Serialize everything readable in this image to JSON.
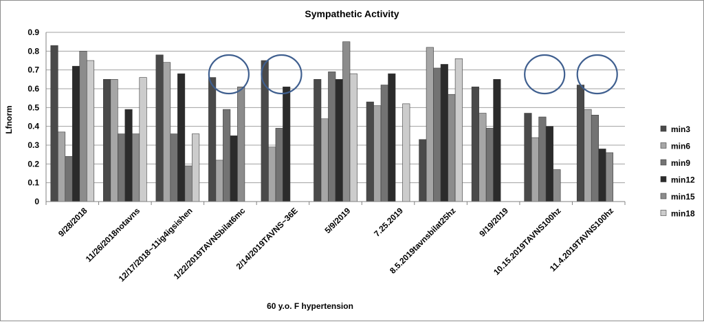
{
  "chart_data": {
    "type": "bar",
    "title": "Sympathetic Activity",
    "xlabel": "60 y.o. F hypertension",
    "ylabel": "Lfnorm",
    "ylim": [
      0,
      0.9
    ],
    "yticks": [
      "0",
      "0.1",
      "0.2",
      "0.3",
      "0.4",
      "0.5",
      "0.6",
      "0.7",
      "0.8",
      "0.9"
    ],
    "grid": true,
    "legend_position": "right",
    "categories": [
      "9/28/2018",
      "11/26/2018notavns",
      "12/17/2018~11ig4igsishen",
      "1/22/2019TAVNSbilat6mc",
      "2/14/2019TAVNS~36E",
      "5/9/2019",
      "7.25.2019",
      "8.5.2019tavnsbilat25hz",
      "9/19/2019",
      "10.15.2019TAVNS100hz",
      "11.4.2019TAVNS100hz"
    ],
    "series": [
      {
        "name": "min3",
        "color": "#4a4a4a",
        "values": [
          0.83,
          0.65,
          0.78,
          0.66,
          0.75,
          0.65,
          0.53,
          0.33,
          0.61,
          0.47,
          0.62
        ]
      },
      {
        "name": "min6",
        "color": "#a6a6a6",
        "values": [
          0.37,
          0.65,
          0.74,
          0.22,
          0.29,
          0.44,
          0.51,
          0.82,
          0.47,
          0.34,
          0.49
        ]
      },
      {
        "name": "min9",
        "color": "#737373",
        "values": [
          0.24,
          0.36,
          0.36,
          0.49,
          0.39,
          0.69,
          0.62,
          0.71,
          0.39,
          0.45,
          0.46
        ]
      },
      {
        "name": "min12",
        "color": "#2b2b2b",
        "values": [
          0.72,
          0.49,
          0.68,
          0.35,
          0.61,
          0.65,
          0.68,
          0.73,
          0.65,
          0.4,
          0.28
        ]
      },
      {
        "name": "min15",
        "color": "#8c8c8c",
        "values": [
          0.8,
          0.36,
          0.19,
          0.61,
          null,
          0.85,
          null,
          0.57,
          null,
          0.17,
          0.26
        ]
      },
      {
        "name": "min18",
        "color": "#cccccc",
        "values": [
          0.75,
          0.66,
          0.36,
          null,
          null,
          0.68,
          0.52,
          0.76,
          null,
          null,
          null
        ]
      }
    ],
    "annotations": [
      {
        "shape": "circle",
        "color": "#3f5f8f",
        "category": "1/22/2019TAVNSbilat6mc"
      },
      {
        "shape": "circle",
        "color": "#3f5f8f",
        "category": "2/14/2019TAVNS~36E"
      },
      {
        "shape": "circle",
        "color": "#3f5f8f",
        "category": "10.15.2019TAVNS100hz"
      },
      {
        "shape": "circle",
        "color": "#3f5f8f",
        "category": "11.4.2019TAVNS100hz"
      }
    ]
  }
}
